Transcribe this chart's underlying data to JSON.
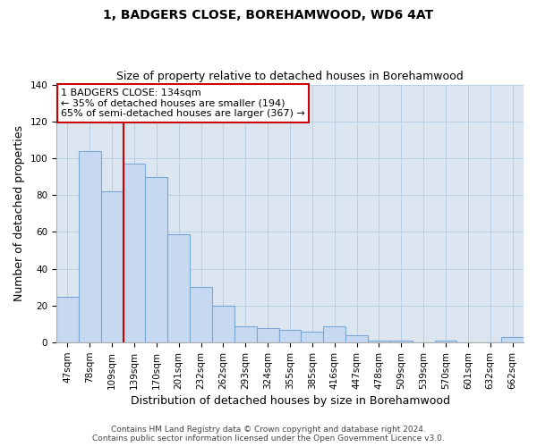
{
  "title": "1, BADGERS CLOSE, BOREHAMWOOD, WD6 4AT",
  "subtitle": "Size of property relative to detached houses in Borehamwood",
  "xlabel": "Distribution of detached houses by size in Borehamwood",
  "ylabel": "Number of detached properties",
  "bar_labels": [
    "47sqm",
    "78sqm",
    "109sqm",
    "139sqm",
    "170sqm",
    "201sqm",
    "232sqm",
    "262sqm",
    "293sqm",
    "324sqm",
    "355sqm",
    "385sqm",
    "416sqm",
    "447sqm",
    "478sqm",
    "509sqm",
    "539sqm",
    "570sqm",
    "601sqm",
    "632sqm",
    "662sqm"
  ],
  "bar_heights": [
    25,
    104,
    82,
    97,
    90,
    59,
    30,
    20,
    9,
    8,
    7,
    6,
    9,
    4,
    1,
    1,
    0,
    1,
    0,
    0,
    3
  ],
  "bar_color": "#c6d9f1",
  "bar_edge_color": "#7ba7d4",
  "vline_x_index": 3,
  "vline_color": "#cc0000",
  "ylim": [
    0,
    140
  ],
  "yticks": [
    0,
    20,
    40,
    60,
    80,
    100,
    120,
    140
  ],
  "annotation_line1": "1 BADGERS CLOSE: 134sqm",
  "annotation_line2": "← 35% of detached houses are smaller (194)",
  "annotation_line3": "65% of semi-detached houses are larger (367) →",
  "annotation_box_color": "#ffffff",
  "annotation_box_edge": "#cc0000",
  "footer_line1": "Contains HM Land Registry data © Crown copyright and database right 2024.",
  "footer_line2": "Contains public sector information licensed under the Open Government Licence v3.0.",
  "background_color": "#ffffff",
  "axes_bg_color": "#dce6f1",
  "grid_color": "#b8cfe4",
  "title_fontsize": 10,
  "subtitle_fontsize": 9,
  "ylabel_fontsize": 9,
  "xlabel_fontsize": 9,
  "tick_fontsize": 7.5,
  "footer_fontsize": 6.5
}
